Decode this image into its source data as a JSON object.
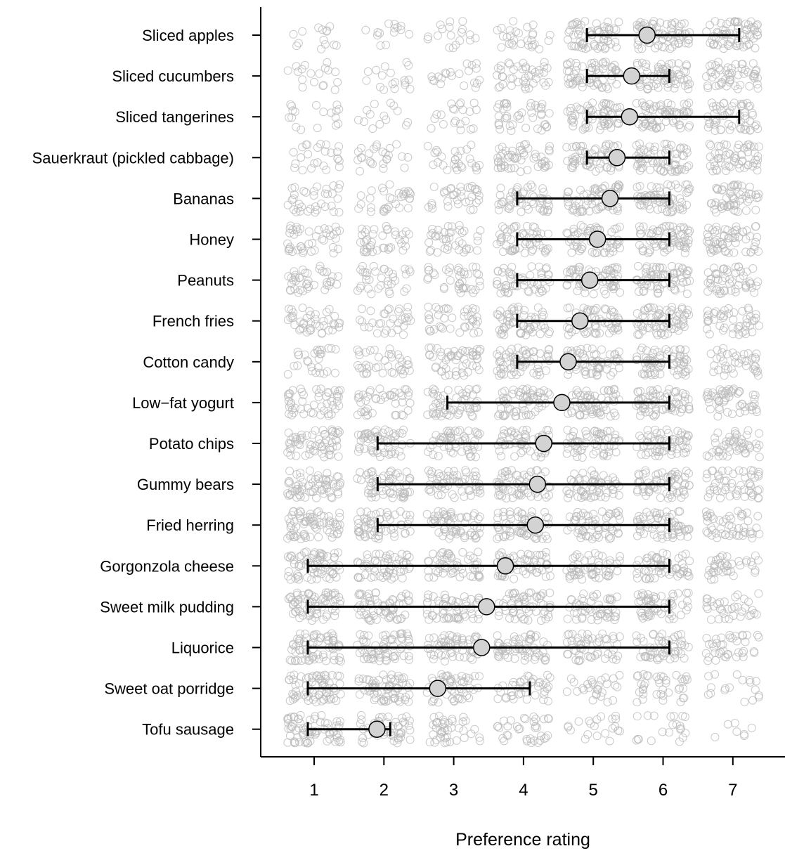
{
  "chart_data": {
    "type": "scatter",
    "title": "",
    "xlabel": "Preference rating",
    "ylabel": "",
    "xlim": [
      0.25,
      7.75
    ],
    "xticks": [
      1,
      2,
      3,
      4,
      5,
      6,
      7
    ],
    "grid": false,
    "legend": "none",
    "colors": {
      "jitter_point": "#b8b8b8",
      "mean_fill": "#d3d3d3",
      "mean_stroke": "#000000",
      "whisker": "#000000",
      "axis": "#000000"
    },
    "categories": [
      "Sliced apples",
      "Sliced cucumbers",
      "Sliced tangerines",
      "Sauerkraut (pickled cabbage)",
      "Bananas",
      "Honey",
      "Peanuts",
      "French fries",
      "Cotton candy",
      "Low−fat yogurt",
      "Potato chips",
      "Gummy bears",
      "Fried herring",
      "Gorgonzola cheese",
      "Sweet milk pudding",
      "Liquorice",
      "Sweet oat porridge",
      "Tofu sausage"
    ],
    "means": [
      5.77,
      5.55,
      5.52,
      5.34,
      5.24,
      5.06,
      4.95,
      4.81,
      4.64,
      4.55,
      4.29,
      4.2,
      4.17,
      3.74,
      3.47,
      3.4,
      2.77,
      1.9
    ],
    "intervals": [
      [
        5,
        7
      ],
      [
        5,
        6
      ],
      [
        5,
        7
      ],
      [
        5,
        6
      ],
      [
        4,
        6
      ],
      [
        4,
        6
      ],
      [
        4,
        6
      ],
      [
        4,
        6
      ],
      [
        4,
        6
      ],
      [
        3,
        6
      ],
      [
        2,
        6
      ],
      [
        2,
        6
      ],
      [
        2,
        6
      ],
      [
        1,
        6
      ],
      [
        1,
        6
      ],
      [
        1,
        6
      ],
      [
        1,
        4
      ],
      [
        1,
        2
      ]
    ],
    "response_density": [
      [
        0.2,
        0.2,
        0.25,
        0.4,
        0.9,
        1.0,
        0.95
      ],
      [
        0.25,
        0.25,
        0.3,
        0.6,
        0.9,
        1.0,
        0.75
      ],
      [
        0.25,
        0.2,
        0.3,
        0.6,
        0.9,
        1.0,
        0.8
      ],
      [
        0.35,
        0.35,
        0.4,
        0.75,
        0.9,
        1.0,
        0.8
      ],
      [
        0.5,
        0.45,
        0.5,
        0.75,
        0.9,
        1.0,
        0.8
      ],
      [
        0.6,
        0.55,
        0.55,
        0.8,
        0.9,
        1.0,
        0.85
      ],
      [
        0.55,
        0.5,
        0.55,
        0.8,
        0.9,
        1.0,
        0.75
      ],
      [
        0.6,
        0.45,
        0.55,
        0.85,
        0.9,
        1.0,
        0.65
      ],
      [
        0.4,
        0.55,
        0.75,
        0.9,
        0.9,
        1.0,
        0.55
      ],
      [
        0.7,
        0.6,
        0.8,
        0.9,
        0.9,
        1.0,
        0.75
      ],
      [
        0.85,
        0.8,
        0.8,
        0.9,
        0.85,
        0.9,
        0.7
      ],
      [
        0.9,
        0.85,
        0.8,
        0.9,
        0.85,
        0.9,
        0.75
      ],
      [
        1.0,
        0.85,
        0.85,
        0.9,
        0.85,
        0.85,
        0.7
      ],
      [
        1.0,
        0.85,
        0.8,
        0.85,
        0.8,
        0.85,
        0.55
      ],
      [
        1.0,
        0.9,
        0.85,
        0.85,
        0.75,
        0.8,
        0.5
      ],
      [
        1.0,
        0.9,
        0.85,
        0.85,
        0.75,
        0.75,
        0.55
      ],
      [
        1.0,
        0.95,
        0.75,
        0.6,
        0.4,
        0.55,
        0.25
      ],
      [
        1.0,
        0.7,
        0.6,
        0.5,
        0.3,
        0.3,
        0.1
      ]
    ]
  }
}
